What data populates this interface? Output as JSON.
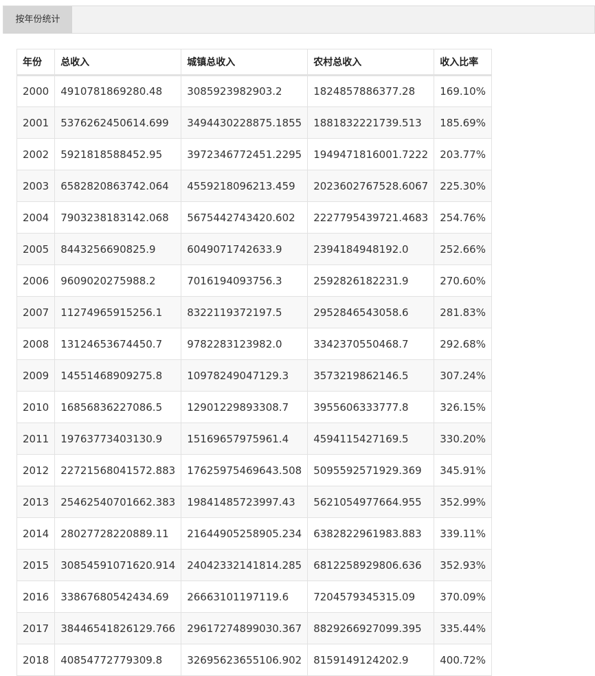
{
  "tabs": [
    {
      "label": "按年份统计"
    }
  ],
  "table": {
    "headers": [
      "年份",
      "总收入",
      "城镇总收入",
      "农村总收入",
      "收入比率"
    ],
    "rows": [
      [
        "2000",
        "4910781869280.48",
        "3085923982903.2",
        "1824857886377.28",
        "169.10%"
      ],
      [
        "2001",
        "5376262450614.699",
        "3494430228875.1855",
        "1881832221739.513",
        "185.69%"
      ],
      [
        "2002",
        "5921818588452.95",
        "3972346772451.2295",
        "1949471816001.7222",
        "203.77%"
      ],
      [
        "2003",
        "6582820863742.064",
        "4559218096213.459",
        "2023602767528.6067",
        "225.30%"
      ],
      [
        "2004",
        "7903238183142.068",
        "5675442743420.602",
        "2227795439721.4683",
        "254.76%"
      ],
      [
        "2005",
        "8443256690825.9",
        "6049071742633.9",
        "2394184948192.0",
        "252.66%"
      ],
      [
        "2006",
        "9609020275988.2",
        "7016194093756.3",
        "2592826182231.9",
        "270.60%"
      ],
      [
        "2007",
        "11274965915256.1",
        "8322119372197.5",
        "2952846543058.6",
        "281.83%"
      ],
      [
        "2008",
        "13124653674450.7",
        "9782283123982.0",
        "3342370550468.7",
        "292.68%"
      ],
      [
        "2009",
        "14551468909275.8",
        "10978249047129.3",
        "3573219862146.5",
        "307.24%"
      ],
      [
        "2010",
        "16856836227086.5",
        "12901229893308.7",
        "3955606333777.8",
        "326.15%"
      ],
      [
        "2011",
        "19763773403130.9",
        "15169657975961.4",
        "4594115427169.5",
        "330.20%"
      ],
      [
        "2012",
        "22721568041572.883",
        "17625975469643.508",
        "5095592571929.369",
        "345.91%"
      ],
      [
        "2013",
        "25462540701662.383",
        "19841485723997.43",
        "5621054977664.955",
        "352.99%"
      ],
      [
        "2014",
        "28027728220889.11",
        "21644905258905.234",
        "6382822961983.883",
        "339.11%"
      ],
      [
        "2015",
        "30854591071620.914",
        "24042332141814.285",
        "6812258929806.636",
        "352.93%"
      ],
      [
        "2016",
        "33867680542434.69",
        "26663101197119.6",
        "7204579345315.09",
        "370.09%"
      ],
      [
        "2017",
        "38446541826129.766",
        "29617274899030.367",
        "8829266927099.395",
        "335.44%"
      ],
      [
        "2018",
        "40854772779309.8",
        "32695623655106.902",
        "8159149124202.9",
        "400.72%"
      ]
    ]
  }
}
